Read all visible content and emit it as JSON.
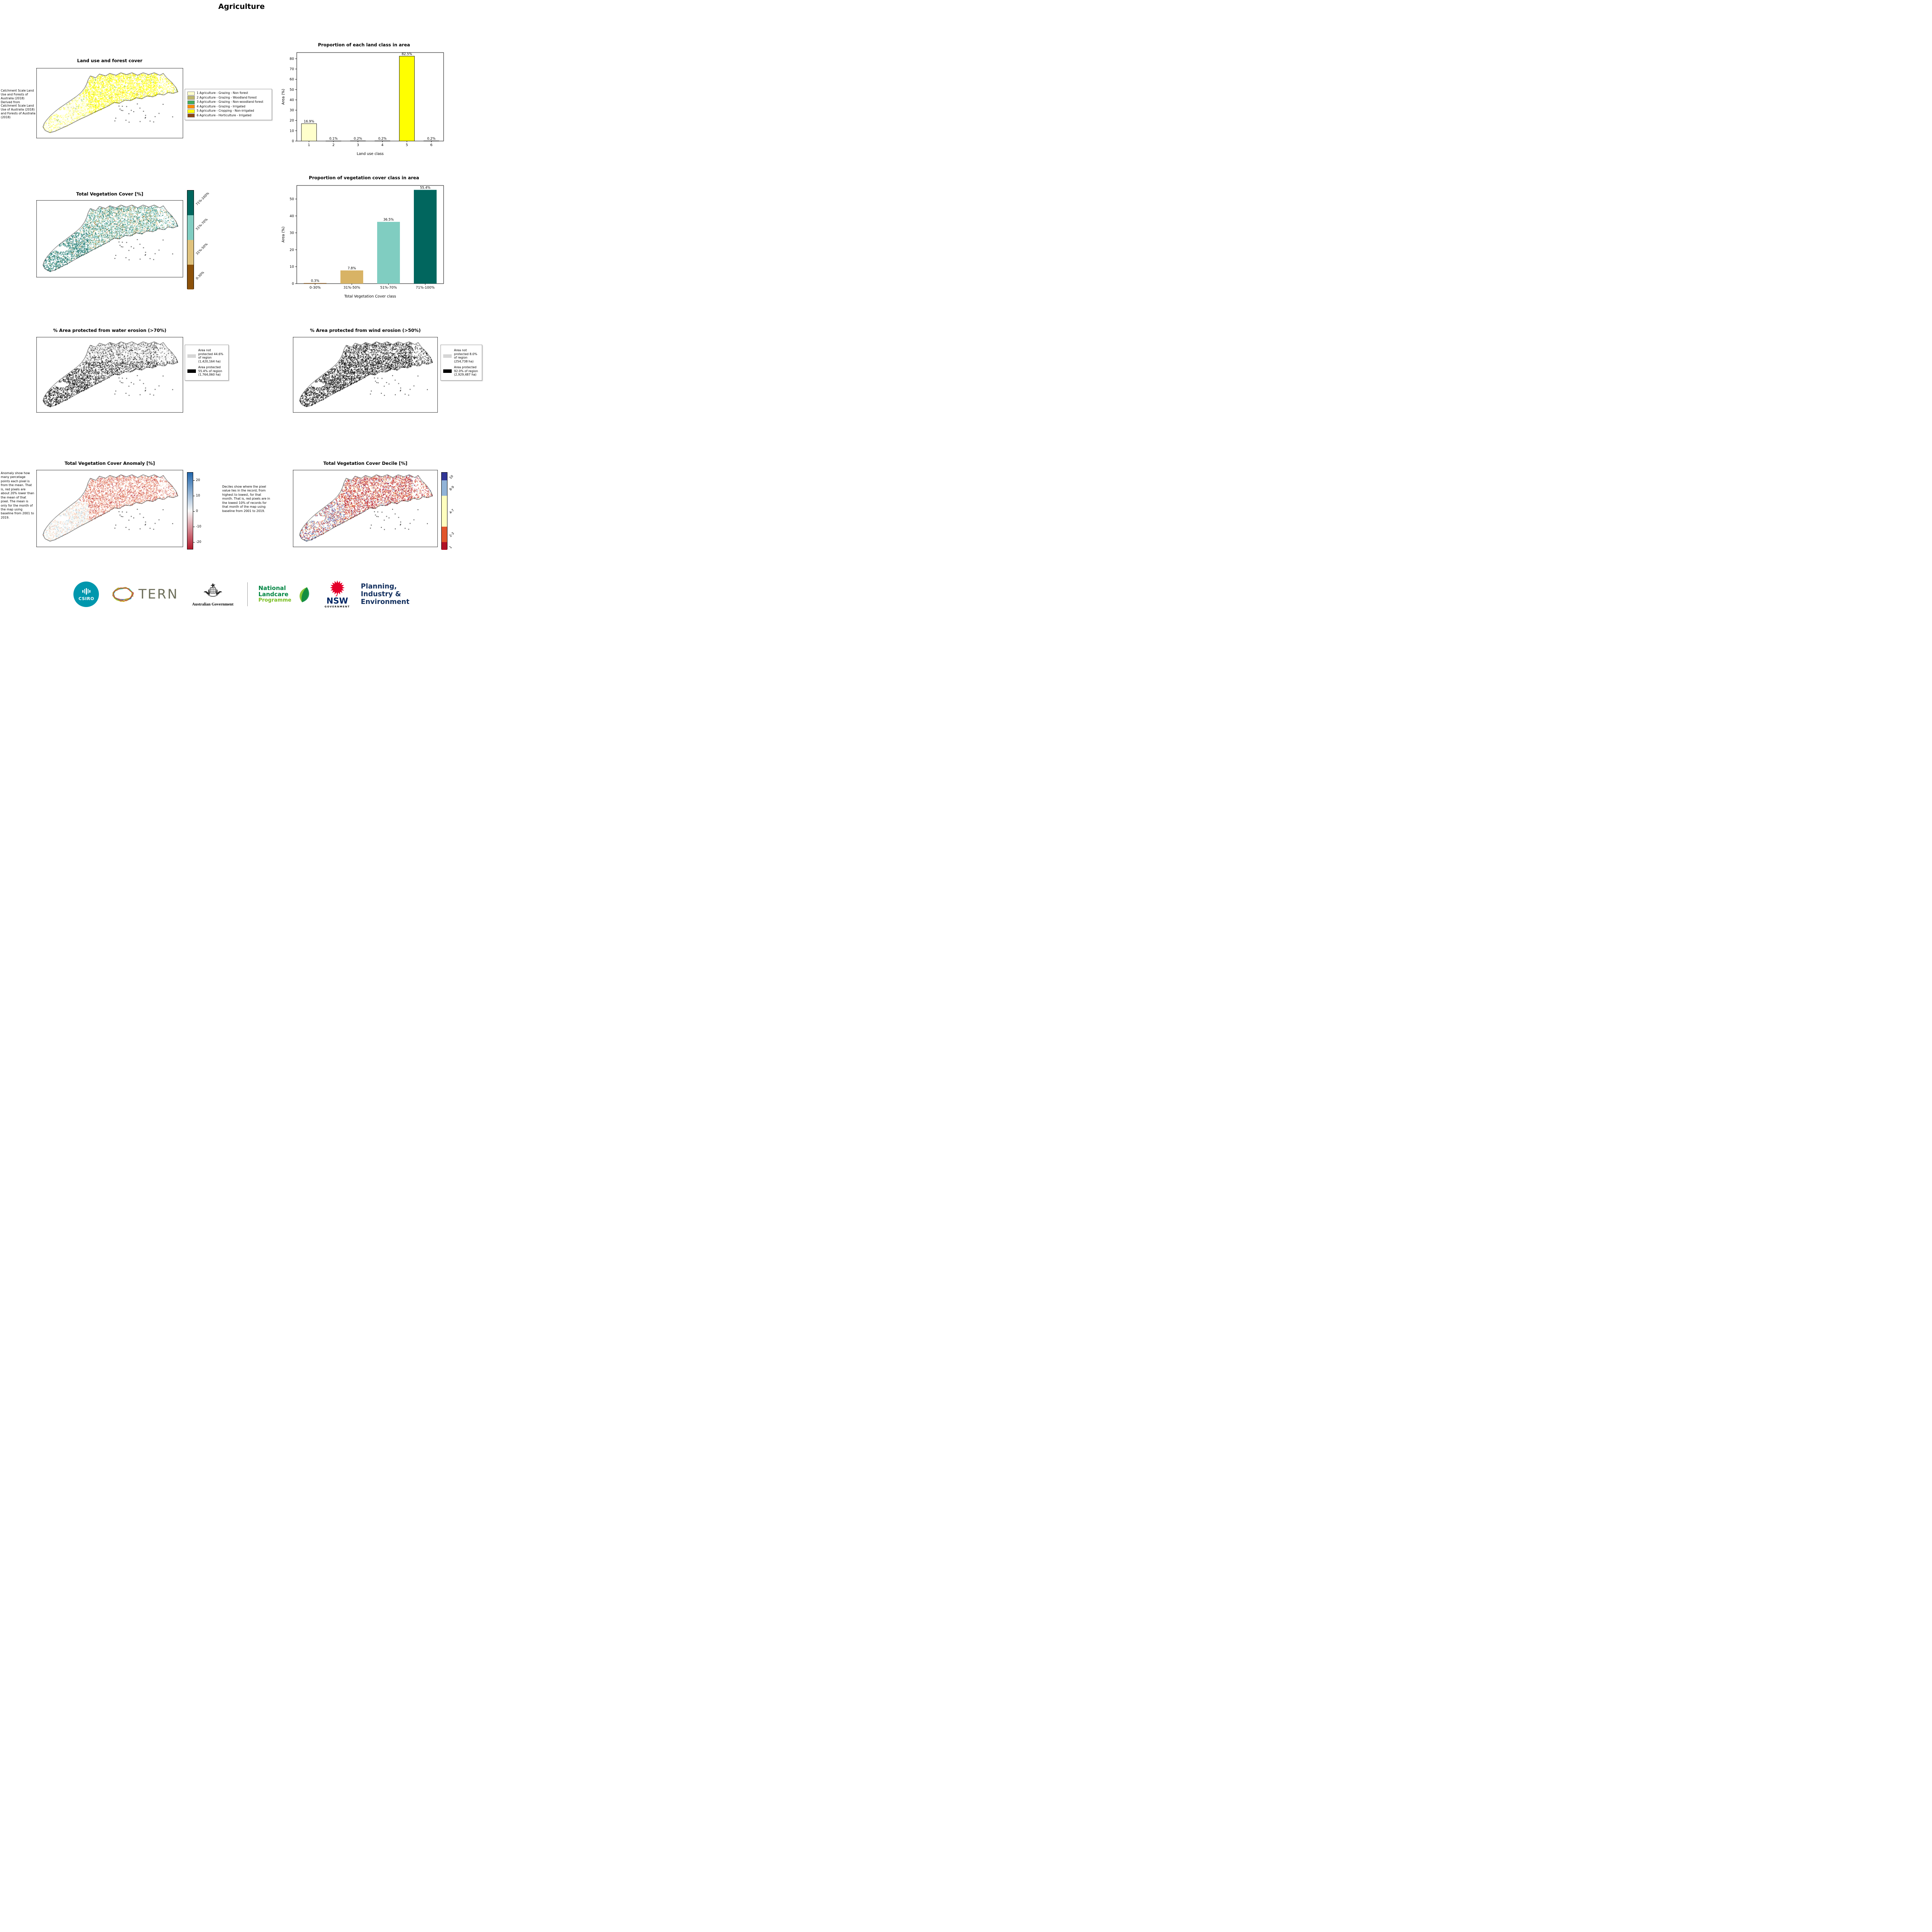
{
  "page": {
    "title": "Agriculture"
  },
  "land_use": {
    "map_title": "Land use and forest cover",
    "side_note": "Catchment Scale Land Use and Forests of Australia (2018) Derived from Catchment Scale Land Use of Australia (2018) and Forests of Australia (2018)",
    "legend": [
      {
        "label": "1 Agriculture - Grazing - Non forest",
        "color": "#ffffcc"
      },
      {
        "label": "2 Agriculture - Grazing - Woodland forest",
        "color": "#bdb76b"
      },
      {
        "label": "3 Agriculture - Grazing - Non-woodland forest",
        "color": "#41ab5d"
      },
      {
        "label": "4 Agriculture - Grazing - Irrigated",
        "color": "#ff8c00"
      },
      {
        "label": "5 Agriculture - Cropping - Non-irrigated",
        "color": "#ffff00"
      },
      {
        "label": "6 Agriculture - Horticulture - Irrigated",
        "color": "#8b4513"
      }
    ]
  },
  "veg_cover": {
    "map_title": "Total Vegetation Cover [%]",
    "colorbar": [
      {
        "label": "71%-100%",
        "color": "#01665e"
      },
      {
        "label": "51%-70%",
        "color": "#80cdc1"
      },
      {
        "label": "31%-50%",
        "color": "#dfc27d"
      },
      {
        "label": "0-30%",
        "color": "#8c510a"
      }
    ]
  },
  "water_erosion": {
    "title": "% Area protected from water erosion (>70%)",
    "legend": [
      {
        "label": "Area not protected 44.6% of region (1,420,164 ha)",
        "color": "#d6d6d6"
      },
      {
        "label": "Area protected 55.4% of region (1,764,060 ha)",
        "color": "#000000"
      }
    ]
  },
  "wind_erosion": {
    "title": "% Area protected from wind erosion (>50%)",
    "legend": [
      {
        "label": "Area not protected 8.0% of region (254,738 ha)",
        "color": "#d6d6d6"
      },
      {
        "label": "Area protected 92.0% of region (2,929,487 ha)",
        "color": "#000000"
      }
    ]
  },
  "anomaly": {
    "title": "Total Vegetation Cover Anomaly [%]",
    "note": "Anomaly show how many percetage points each pixel is from the mean. That is, red pixels are about 20% lower than the mean of that pixel. The mean is only for the month of the map using baseline from 2001 to 2019.",
    "colorbar_ticks": [
      "20",
      "10",
      "0",
      "-10",
      "-20"
    ],
    "colorbar_top_color": "#2166ac",
    "colorbar_mid_color": "#f7f7f7",
    "colorbar_bottom_color": "#b2182b"
  },
  "decile": {
    "title": "Total Vegetation Cover Decile [%]",
    "note": "Deciles show where the pixel value lies in the record, from highest to lowest, for that month. That is, red pixels are in the lowest 10% of records for that month of the map using baseline from 2001 to 2019.",
    "colorbar": [
      {
        "label": "10",
        "color": "#313695"
      },
      {
        "label": "8-9",
        "color": "#91b3d7"
      },
      {
        "label": "4-7",
        "color": "#ffffbf"
      },
      {
        "label": "2-3",
        "color": "#e1562c"
      },
      {
        "label": "1",
        "color": "#b11226"
      }
    ]
  },
  "chart_data": [
    {
      "type": "bar",
      "title": "Proportion of each land class in area",
      "xlabel": "Land use class",
      "ylabel": "Area (%)",
      "categories": [
        "1",
        "2",
        "3",
        "4",
        "5",
        "6"
      ],
      "values": [
        16.9,
        0.1,
        0.2,
        0.2,
        82.5,
        0.2
      ],
      "bar_labels": [
        "16.9%",
        "0.1%",
        "0.2%",
        "0.2%",
        "82.5%",
        "0.2%"
      ],
      "colors": [
        "#ffffcc",
        "#bdb76b",
        "#41ab5d",
        "#ff8c00",
        "#ffff00",
        "#8b4513"
      ],
      "ylim": [
        0,
        86
      ],
      "yticks": [
        0,
        10,
        20,
        30,
        40,
        50,
        60,
        70,
        80
      ],
      "bar_edge": "#000000",
      "grid": false,
      "legend_position": "none"
    },
    {
      "type": "bar",
      "title": "Proportion of vegetation cover class in area",
      "xlabel": "Total Vegetation Cover class",
      "ylabel": "Area (%)",
      "categories": [
        "0-30%",
        "31%-50%",
        "51%-70%",
        "71%-100%"
      ],
      "values": [
        0.3,
        7.8,
        36.5,
        55.4
      ],
      "bar_labels": [
        "0.3%",
        "7.8%",
        "36.5%",
        "55.4%"
      ],
      "colors": [
        "#8c510a",
        "#d8b365",
        "#80cdc1",
        "#01665e"
      ],
      "ylim": [
        0,
        58
      ],
      "yticks": [
        0,
        10,
        20,
        30,
        40,
        50
      ],
      "bar_edge": "none",
      "grid": false,
      "legend_position": "none"
    }
  ],
  "footer": {
    "csiro_label": "CSIRO",
    "tern_label": "TERN",
    "aus_gov_label": "Australian Government",
    "landcare_line1": "National",
    "landcare_line2": "Landcare",
    "landcare_line3": "Programme",
    "nsw_label": "NSW",
    "nsw_sub": "GOVERNMENT",
    "dept_line1": "Planning,",
    "dept_line2": "Industry &",
    "dept_line3": "Environment"
  }
}
